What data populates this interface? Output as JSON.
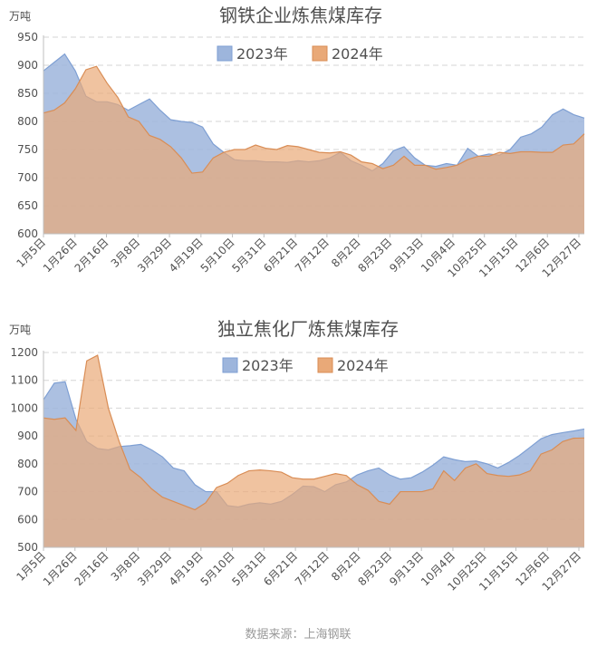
{
  "source_label": "数据来源：上海钢联",
  "chart_data": [
    {
      "type": "area",
      "title": "钢铁企业炼焦煤库存",
      "unit_label": "万吨",
      "ylim": [
        600,
        950
      ],
      "yticks": [
        600,
        650,
        700,
        750,
        800,
        850,
        900,
        950
      ],
      "grid": true,
      "legend_position": "top-center",
      "x_tick_labels": [
        "1月5日",
        "1月26日",
        "2月16日",
        "3月8日",
        "3月29日",
        "4月19日",
        "5月10日",
        "5月31日",
        "6月21日",
        "7月12日",
        "8月2日",
        "8月23日",
        "9月13日",
        "10月4日",
        "10月25日",
        "11月15日",
        "12月6日",
        "12月27日"
      ],
      "series": [
        {
          "name": "2023年",
          "color": "#9db5dc",
          "values": [
            890,
            905,
            920,
            890,
            845,
            835,
            835,
            830,
            820,
            830,
            840,
            820,
            803,
            800,
            798,
            790,
            760,
            745,
            732,
            730,
            730,
            728,
            728,
            727,
            730,
            728,
            730,
            735,
            745,
            730,
            722,
            712,
            725,
            748,
            755,
            735,
            722,
            720,
            725,
            722,
            752,
            738,
            742,
            740,
            750,
            772,
            778,
            790,
            812,
            822,
            812,
            806
          ]
        },
        {
          "name": "2024年",
          "color": "#e9a978",
          "values": [
            815,
            820,
            833,
            858,
            892,
            898,
            868,
            843,
            808,
            800,
            775,
            768,
            755,
            735,
            708,
            710,
            735,
            745,
            750,
            750,
            758,
            752,
            750,
            757,
            755,
            750,
            745,
            744,
            746,
            740,
            728,
            725,
            716,
            722,
            738,
            722,
            722,
            715,
            718,
            722,
            732,
            738,
            738,
            745,
            743,
            746,
            746,
            745,
            745,
            758,
            760,
            778
          ]
        }
      ]
    },
    {
      "type": "area",
      "title": "独立焦化厂炼焦煤库存",
      "unit_label": "万吨",
      "ylim": [
        500,
        1200
      ],
      "yticks": [
        500,
        600,
        700,
        800,
        900,
        1000,
        1100,
        1200
      ],
      "grid": true,
      "legend_position": "top-center",
      "x_tick_labels": [
        "1月5日",
        "1月26日",
        "2月16日",
        "3月8日",
        "3月29日",
        "4月19日",
        "5月10日",
        "5月31日",
        "6月21日",
        "7月12日",
        "8月2日",
        "8月23日",
        "9月13日",
        "10月4日",
        "10月25日",
        "11月15日",
        "12月6日",
        "12月27日"
      ],
      "series": [
        {
          "name": "2023年",
          "color": "#9db5dc",
          "values": [
            1030,
            1090,
            1095,
            960,
            880,
            855,
            850,
            862,
            865,
            870,
            850,
            825,
            785,
            775,
            725,
            700,
            700,
            650,
            645,
            655,
            660,
            655,
            665,
            690,
            720,
            718,
            700,
            725,
            735,
            760,
            775,
            785,
            760,
            745,
            750,
            770,
            795,
            825,
            815,
            808,
            810,
            800,
            785,
            805,
            830,
            860,
            890,
            905,
            912,
            918,
            925
          ]
        },
        {
          "name": "2024年",
          "color": "#e9a978",
          "values": [
            965,
            960,
            965,
            920,
            1170,
            1190,
            1000,
            880,
            780,
            750,
            710,
            680,
            665,
            650,
            635,
            660,
            715,
            730,
            758,
            775,
            778,
            775,
            770,
            750,
            745,
            745,
            755,
            765,
            758,
            725,
            705,
            665,
            655,
            700,
            700,
            700,
            710,
            775,
            740,
            785,
            800,
            765,
            758,
            755,
            760,
            775,
            835,
            850,
            880,
            892,
            893
          ]
        }
      ]
    }
  ]
}
